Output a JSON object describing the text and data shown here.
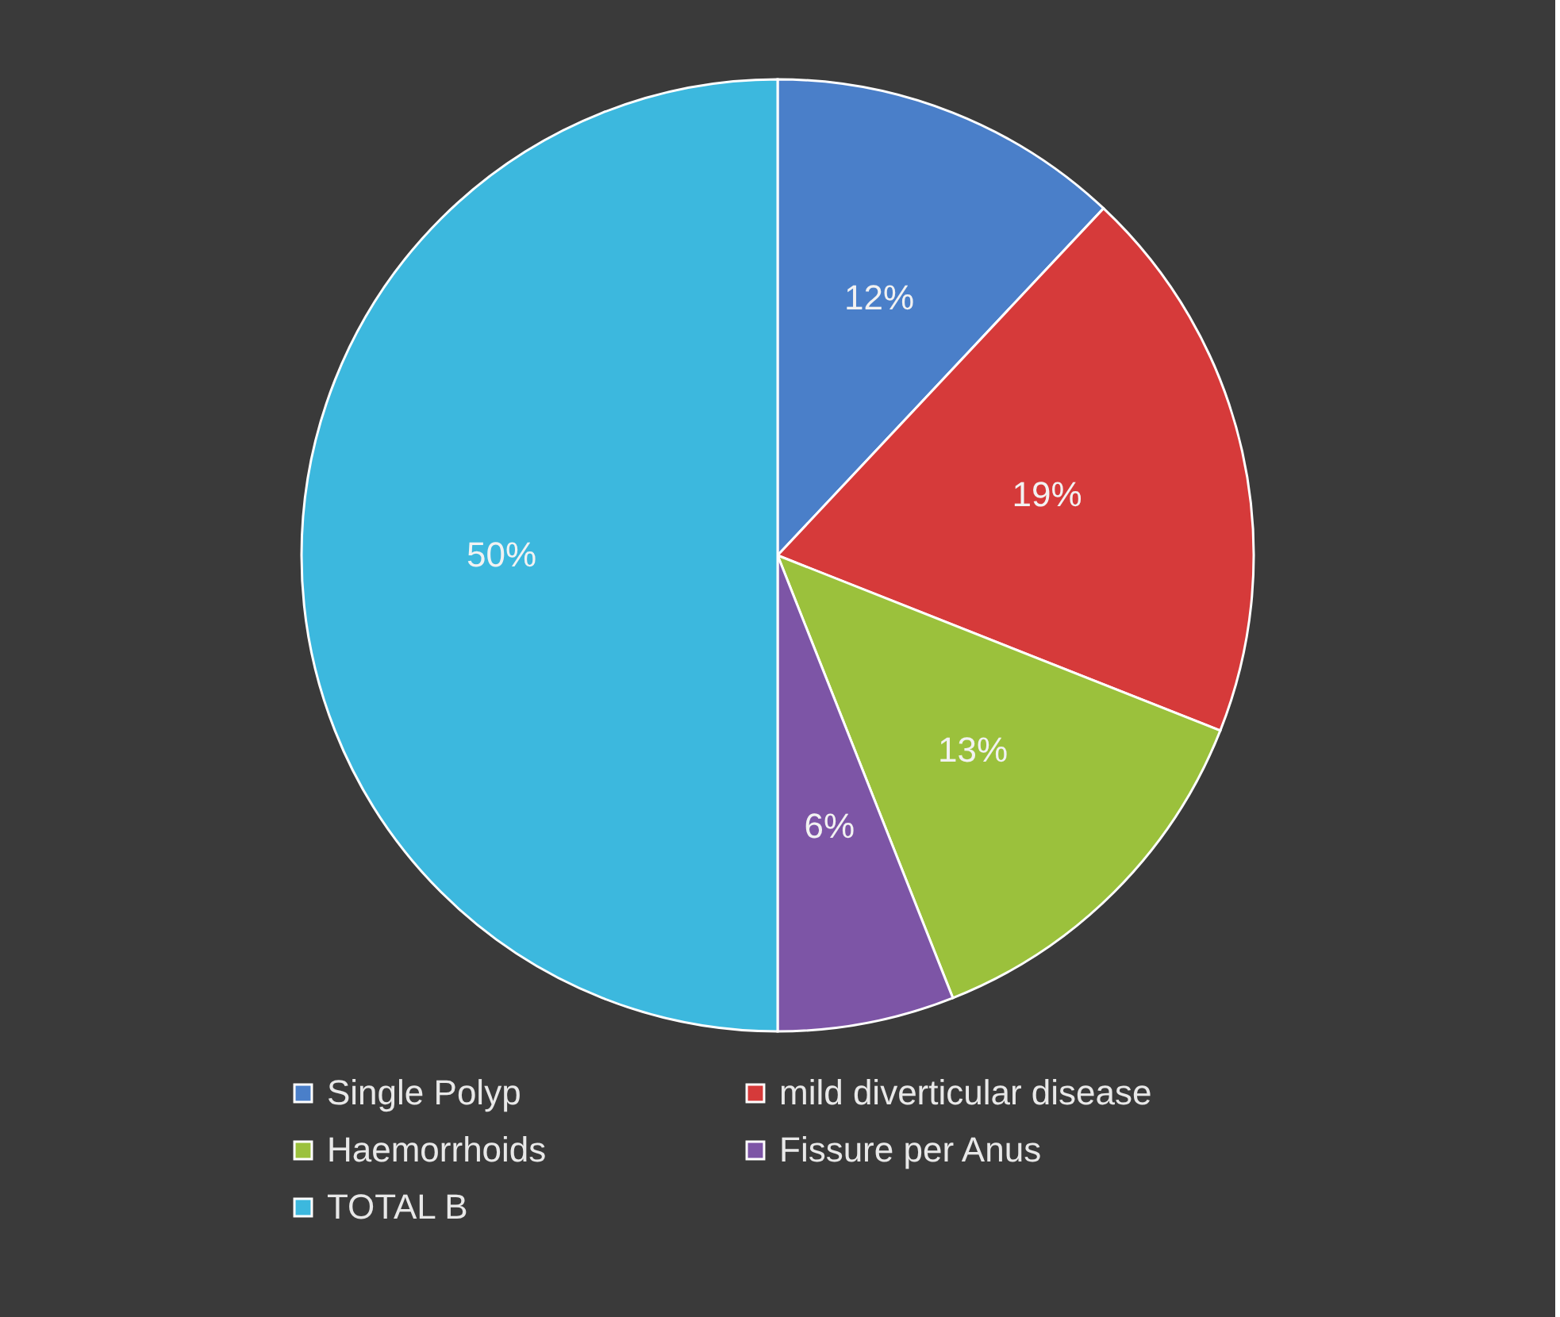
{
  "chart_data": {
    "type": "pie",
    "categories": [
      "Single Polyp",
      "mild diverticular disease",
      "Haemorrhoids",
      "Fissure per Anus",
      "TOTAL B"
    ],
    "values": [
      12,
      19,
      13,
      6,
      50
    ],
    "colors": [
      "#4a7fc9",
      "#d63a3a",
      "#9bc13c",
      "#7d55a6",
      "#3cb8de"
    ],
    "value_labels": [
      "12%",
      "19%",
      "13%",
      "6%",
      "50%"
    ],
    "legend": "bottom"
  }
}
